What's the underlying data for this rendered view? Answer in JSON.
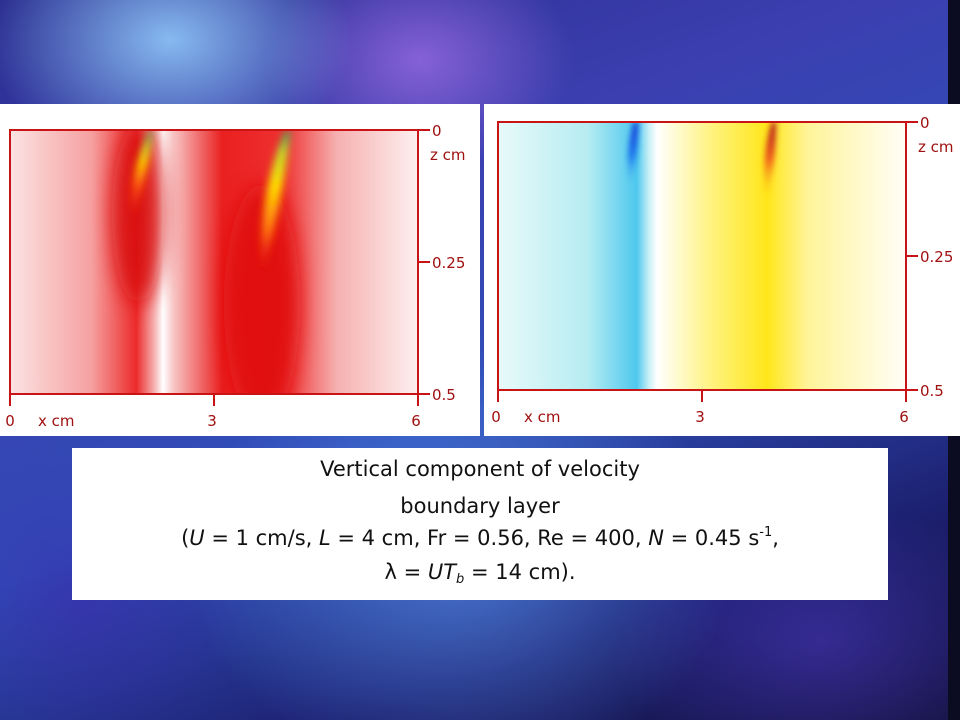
{
  "figure_left": {
    "x_ticks": [
      "0",
      "3",
      "6"
    ],
    "x_label": "x cm",
    "z_ticks": [
      "0",
      "0.25",
      "0.5"
    ],
    "z_label": "z cm"
  },
  "figure_right": {
    "x_ticks": [
      "0",
      "3",
      "6"
    ],
    "x_label": "x cm",
    "z_ticks": [
      "0",
      "0.25",
      "0.5"
    ],
    "z_label": "z cm"
  },
  "caption": {
    "title": "Vertical component of velocity",
    "subtitle": "boundary layer",
    "open_paren": "(",
    "U_symbol": "U",
    "U_value": " = 1 cm/s, ",
    "L_symbol": "L",
    "L_value": " = 4 cm, Fr = 0.56, Re = 400, ",
    "N_symbol": "N",
    "N_value": " = 0.45 s",
    "N_exponent": "-1",
    "params_end": ",",
    "lambda_symbol": "λ",
    "lambda_eq": " = ",
    "UT_symbol": "UT",
    "T_subscript": "b",
    "lambda_value": " = 14 cm)."
  },
  "colors": {
    "axis": "#c81414",
    "tick_text": "#a01010"
  }
}
